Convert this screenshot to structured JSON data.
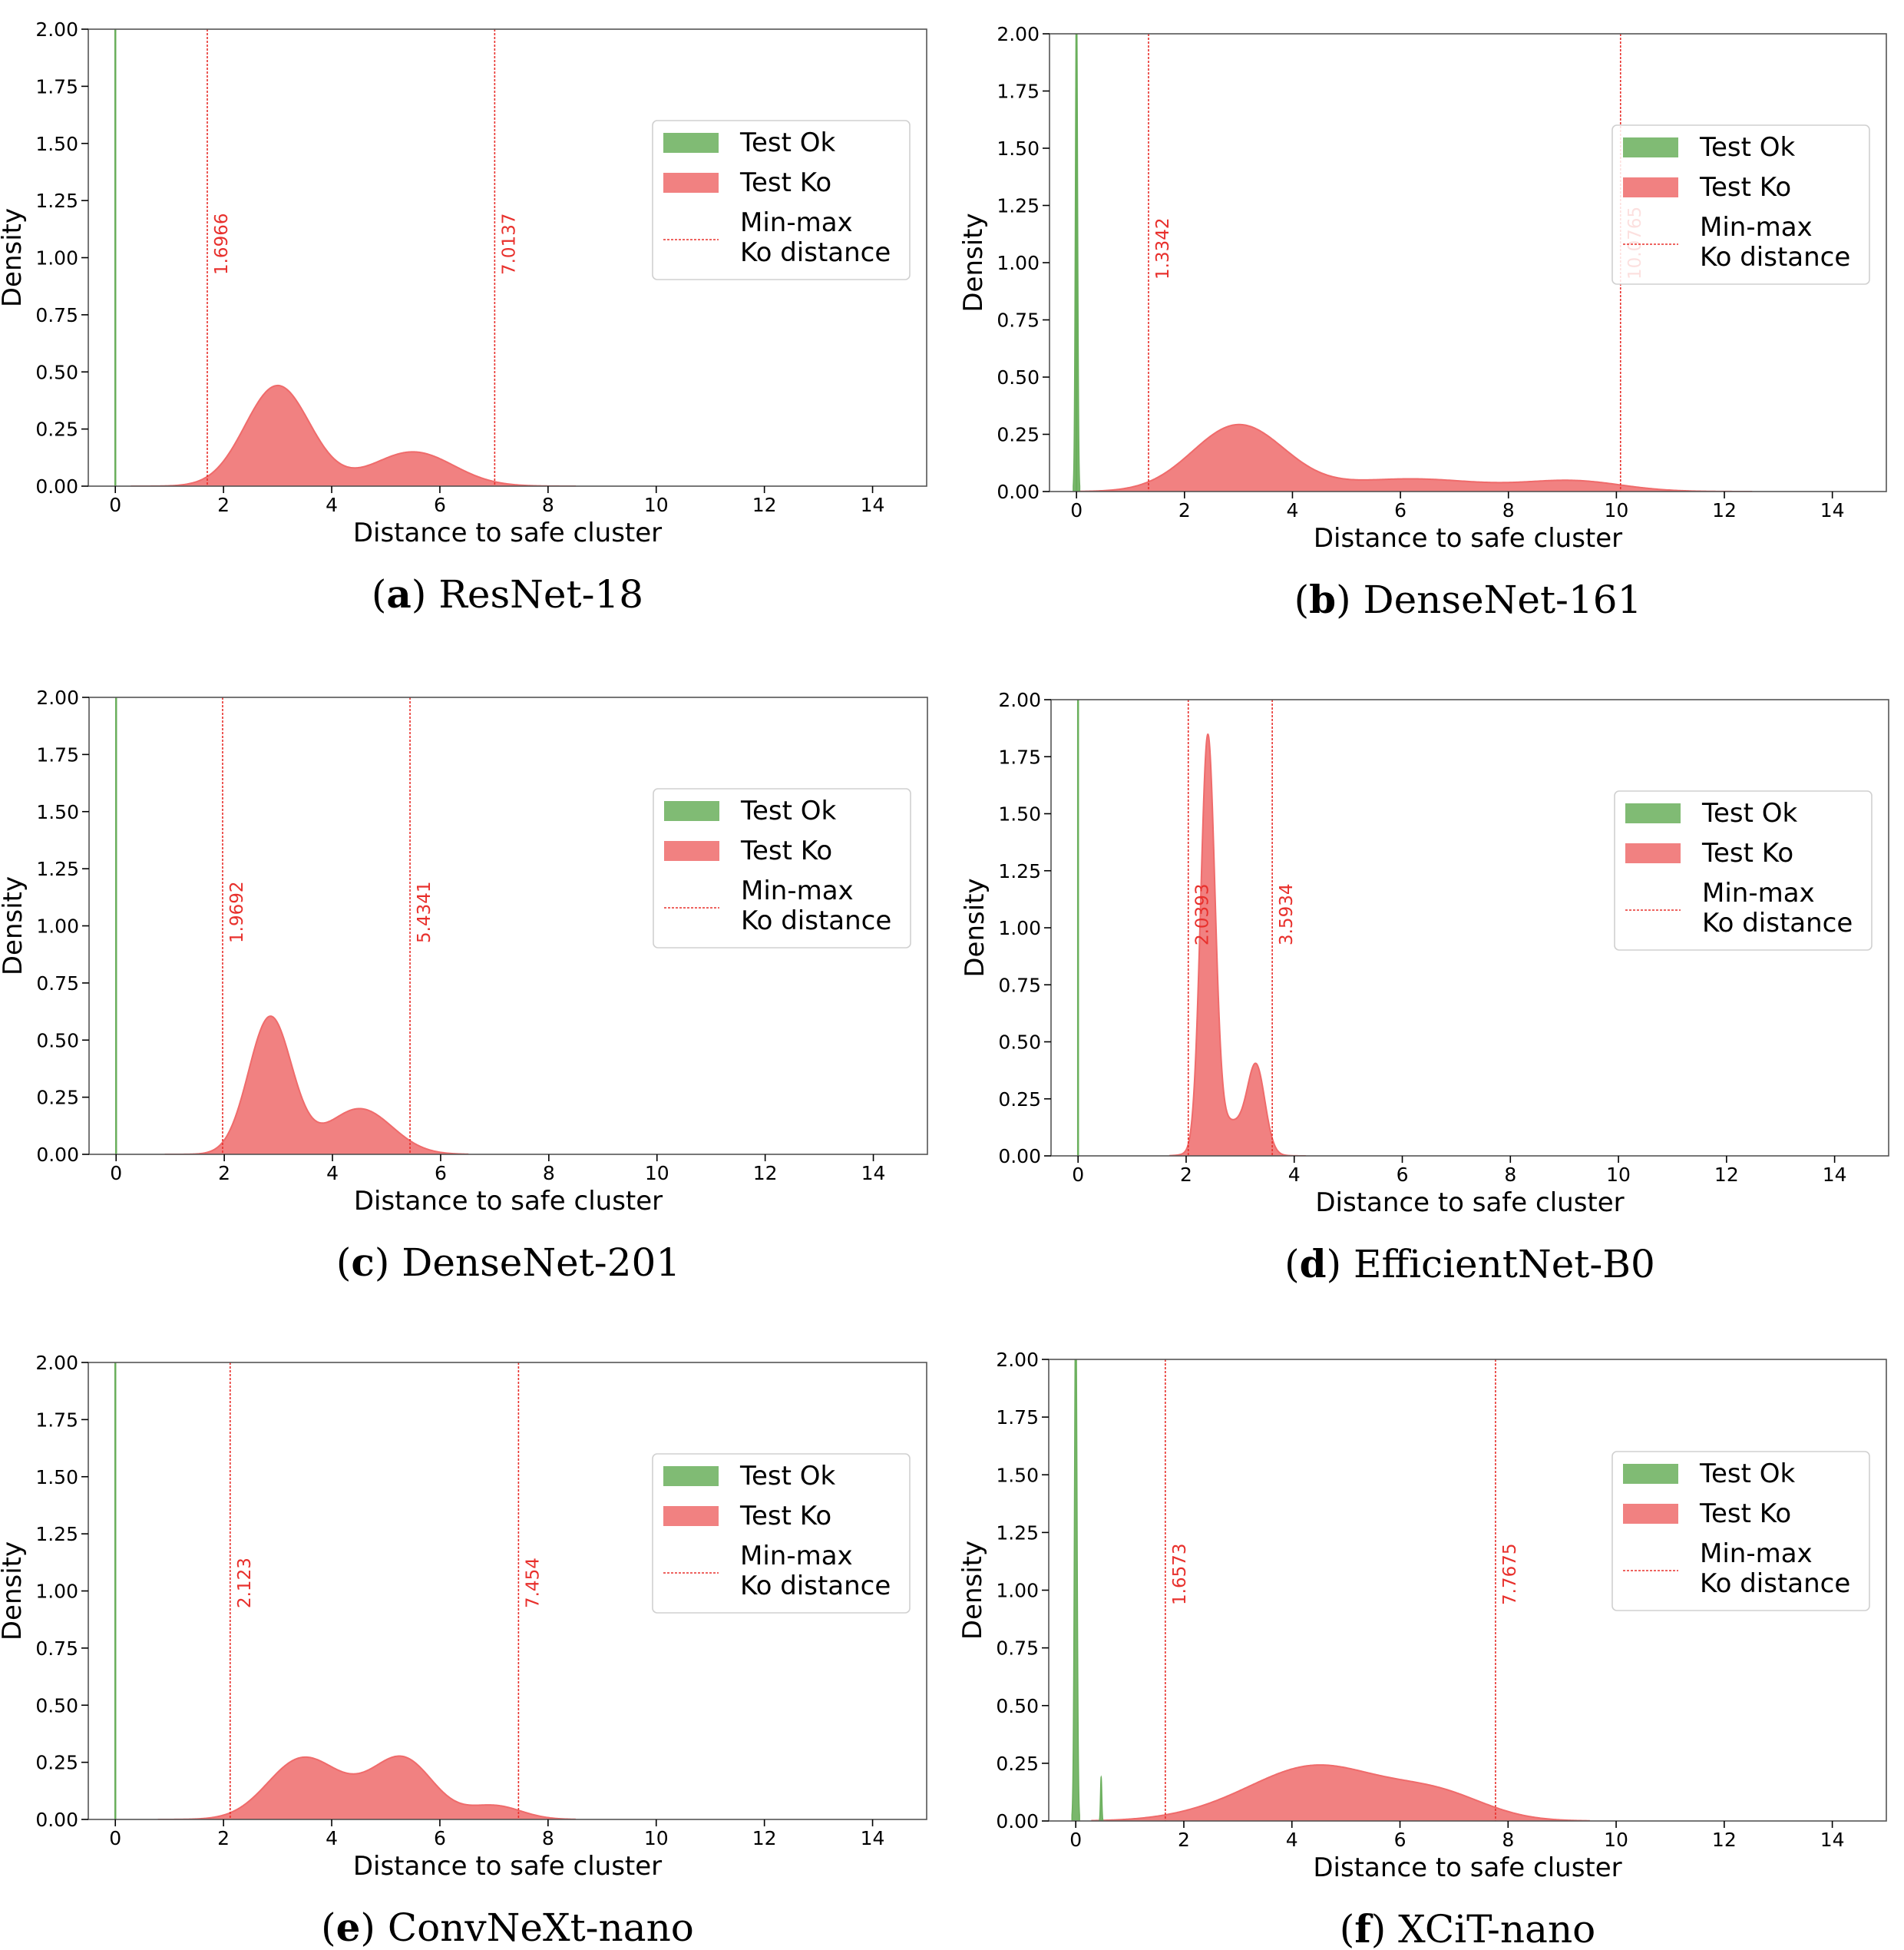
{
  "colors": {
    "ok": "#6aaf5c",
    "ko": "#ef6b6b",
    "minmax": "#e8302c",
    "axis": "#000000"
  },
  "legend": {
    "ok_label": "Test Ok",
    "ko_label": "Test Ko",
    "minmax_line1": "Min-max",
    "minmax_line2": "Ko distance"
  },
  "chart_data": [
    {
      "id": "a",
      "letter": "a",
      "title": "ResNet-18",
      "type": "area",
      "xlabel": "Distance to safe cluster",
      "ylabel": "Density",
      "xlim": [
        -0.5,
        15
      ],
      "ylim": [
        0,
        2
      ],
      "xticks": [
        "0",
        "2",
        "4",
        "6",
        "8",
        "10",
        "12",
        "14"
      ],
      "yticks": [
        "0.00",
        "0.25",
        "0.50",
        "0.75",
        "1.00",
        "1.25",
        "1.50",
        "1.75",
        "2.00"
      ],
      "ok_lines": [
        0
      ],
      "ok_spikes": [],
      "ko_components": [
        {
          "mu": 3.0,
          "sigma": 0.6,
          "h": 0.44
        },
        {
          "mu": 5.5,
          "sigma": 0.75,
          "h": 0.15
        }
      ],
      "ko_range": [
        0.3,
        8.5
      ],
      "minmax": [
        {
          "x": 1.7,
          "label": "1.6966"
        },
        {
          "x": 7.0137,
          "label": "7.0137"
        }
      ]
    },
    {
      "id": "b",
      "letter": "b",
      "title": "DenseNet-161",
      "type": "area",
      "xlabel": "Distance to safe cluster",
      "ylabel": "Density",
      "xlim": [
        -0.5,
        15
      ],
      "ylim": [
        0,
        2
      ],
      "xticks": [
        "0",
        "2",
        "4",
        "6",
        "8",
        "10",
        "12",
        "14"
      ],
      "yticks": [
        "0.00",
        "0.25",
        "0.50",
        "0.75",
        "1.00",
        "1.25",
        "1.50",
        "1.75",
        "2.00"
      ],
      "ok_lines": [
        0
      ],
      "ok_spikes": [
        {
          "x": 0,
          "w": 0.06,
          "h": 2.2
        }
      ],
      "ko_components": [
        {
          "mu": 3.0,
          "sigma": 0.85,
          "h": 0.29
        },
        {
          "mu": 6.2,
          "sigma": 1.3,
          "h": 0.055
        },
        {
          "mu": 9.2,
          "sigma": 0.9,
          "h": 0.045
        }
      ],
      "ko_range": [
        0.0,
        12.5
      ],
      "minmax": [
        {
          "x": 1.3342,
          "label": "1.3342"
        },
        {
          "x": 10.0765,
          "label": "10.0765"
        }
      ]
    },
    {
      "id": "c",
      "letter": "c",
      "title": "DenseNet-201",
      "type": "area",
      "xlabel": "Distance to safe cluster",
      "ylabel": "Density",
      "xlim": [
        -0.5,
        15
      ],
      "ylim": [
        0,
        2
      ],
      "xticks": [
        "0",
        "2",
        "4",
        "6",
        "8",
        "10",
        "12",
        "14"
      ],
      "yticks": [
        "0.00",
        "0.25",
        "0.50",
        "0.75",
        "1.00",
        "1.25",
        "1.50",
        "1.75",
        "2.00"
      ],
      "ok_lines": [
        0
      ],
      "ok_spikes": [],
      "ko_components": [
        {
          "mu": 2.85,
          "sigma": 0.4,
          "h": 0.6
        },
        {
          "mu": 4.5,
          "sigma": 0.6,
          "h": 0.2
        }
      ],
      "ko_range": [
        0.9,
        6.5
      ],
      "minmax": [
        {
          "x": 1.9692,
          "label": "1.9692"
        },
        {
          "x": 5.4341,
          "label": "5.4341"
        }
      ]
    },
    {
      "id": "d",
      "letter": "d",
      "title": "EfficientNet-B0",
      "type": "area",
      "xlabel": "Distance to safe cluster",
      "ylabel": "Density",
      "xlim": [
        -0.5,
        15
      ],
      "ylim": [
        0,
        2
      ],
      "xticks": [
        "0",
        "2",
        "4",
        "6",
        "8",
        "10",
        "12",
        "14"
      ],
      "yticks": [
        "0.00",
        "0.25",
        "0.50",
        "0.75",
        "1.00",
        "1.25",
        "1.50",
        "1.75",
        "2.00"
      ],
      "ok_lines": [
        0
      ],
      "ok_spikes": [],
      "ko_components": [
        {
          "mu": 2.4,
          "sigma": 0.13,
          "h": 1.77
        },
        {
          "mu": 3.3,
          "sigma": 0.16,
          "h": 0.35
        },
        {
          "mu": 2.8,
          "sigma": 0.35,
          "h": 0.15
        }
      ],
      "ko_range": [
        1.7,
        4.2
      ],
      "minmax": [
        {
          "x": 2.0393,
          "label": "2.0393"
        },
        {
          "x": 3.5934,
          "label": "3.5934"
        }
      ]
    },
    {
      "id": "e",
      "letter": "e",
      "title": "ConvNeXt-nano",
      "type": "area",
      "xlabel": "Distance to safe cluster",
      "ylabel": "Density",
      "xlim": [
        -0.5,
        15
      ],
      "ylim": [
        0,
        2
      ],
      "xticks": [
        "0",
        "2",
        "4",
        "6",
        "8",
        "10",
        "12",
        "14"
      ],
      "yticks": [
        "0.00",
        "0.25",
        "0.50",
        "0.75",
        "1.00",
        "1.25",
        "1.50",
        "1.75",
        "2.00"
      ],
      "ok_lines": [
        0
      ],
      "ok_spikes": [],
      "ko_components": [
        {
          "mu": 3.4,
          "sigma": 0.62,
          "h": 0.24
        },
        {
          "mu": 5.35,
          "sigma": 0.55,
          "h": 0.24
        },
        {
          "mu": 4.4,
          "sigma": 0.7,
          "h": 0.08
        },
        {
          "mu": 7.0,
          "sigma": 0.5,
          "h": 0.06
        }
      ],
      "ko_range": [
        0.8,
        8.5
      ],
      "minmax": [
        {
          "x": 2.123,
          "label": "2.123"
        },
        {
          "x": 7.454,
          "label": "7.454"
        }
      ]
    },
    {
      "id": "f",
      "letter": "f",
      "title": "XCiT-nano",
      "type": "area",
      "xlabel": "Distance to safe cluster",
      "ylabel": "Density",
      "xlim": [
        -0.5,
        15
      ],
      "ylim": [
        0,
        2
      ],
      "xticks": [
        "0",
        "2",
        "4",
        "6",
        "8",
        "10",
        "12",
        "14"
      ],
      "yticks": [
        "0.00",
        "0.25",
        "0.50",
        "0.75",
        "1.00",
        "1.25",
        "1.50",
        "1.75",
        "2.00"
      ],
      "ok_lines": [],
      "ok_spikes": [
        {
          "x": 0,
          "w": 0.07,
          "h": 2.3
        },
        {
          "x": 0.47,
          "w": 0.035,
          "h": 0.19
        }
      ],
      "ko_components": [
        {
          "mu": 4.5,
          "sigma": 1.15,
          "h": 0.23
        },
        {
          "mu": 6.7,
          "sigma": 0.9,
          "h": 0.11
        },
        {
          "mu": 2.8,
          "sigma": 1.0,
          "h": 0.03
        }
      ],
      "ko_range": [
        0.3,
        9.5
      ],
      "minmax": [
        {
          "x": 1.6573,
          "label": "1.6573"
        },
        {
          "x": 7.7675,
          "label": "7.7675"
        }
      ]
    }
  ]
}
